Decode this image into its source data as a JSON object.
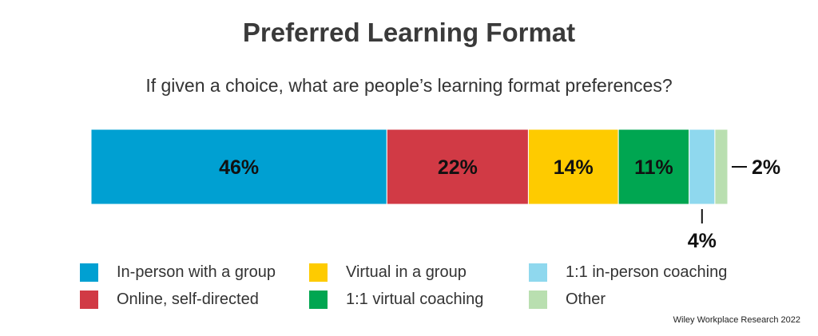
{
  "chart_data": {
    "type": "bar",
    "orientation": "horizontal-stacked",
    "title": "Preferred Learning Format",
    "subtitle": "If given a choice, what are people’s learning format preferences?",
    "series": [
      {
        "name": "In-person with a group",
        "value": 46,
        "label": "46%",
        "color": "#00a0d2"
      },
      {
        "name": "Online, self-directed",
        "value": 22,
        "label": "22%",
        "color": "#d13a45"
      },
      {
        "name": "Virtual in a group",
        "value": 14,
        "label": "14%",
        "color": "#fecb00"
      },
      {
        "name": "1:1 virtual coaching",
        "value": 11,
        "label": "11%",
        "color": "#00a651"
      },
      {
        "name": "1:1 in-person coaching",
        "value": 4,
        "label": "4%",
        "color": "#8fd8ee"
      },
      {
        "name": "Other",
        "value": 2,
        "label": "2%",
        "color": "#b9dfb0"
      }
    ],
    "legend_placement": "bottom",
    "grid": false
  },
  "legend": [
    {
      "label": "In-person with a group",
      "color": "#00a0d2"
    },
    {
      "label": "Virtual in a group",
      "color": "#fecb00"
    },
    {
      "label": "1:1 in-person coaching",
      "color": "#8fd8ee"
    },
    {
      "label": "Online, self-directed",
      "color": "#d13a45"
    },
    {
      "label": "1:1 virtual coaching",
      "color": "#00a651"
    },
    {
      "label": "Other",
      "color": "#b9dfb0"
    }
  ],
  "source": "Wiley Workplace Research 2022"
}
